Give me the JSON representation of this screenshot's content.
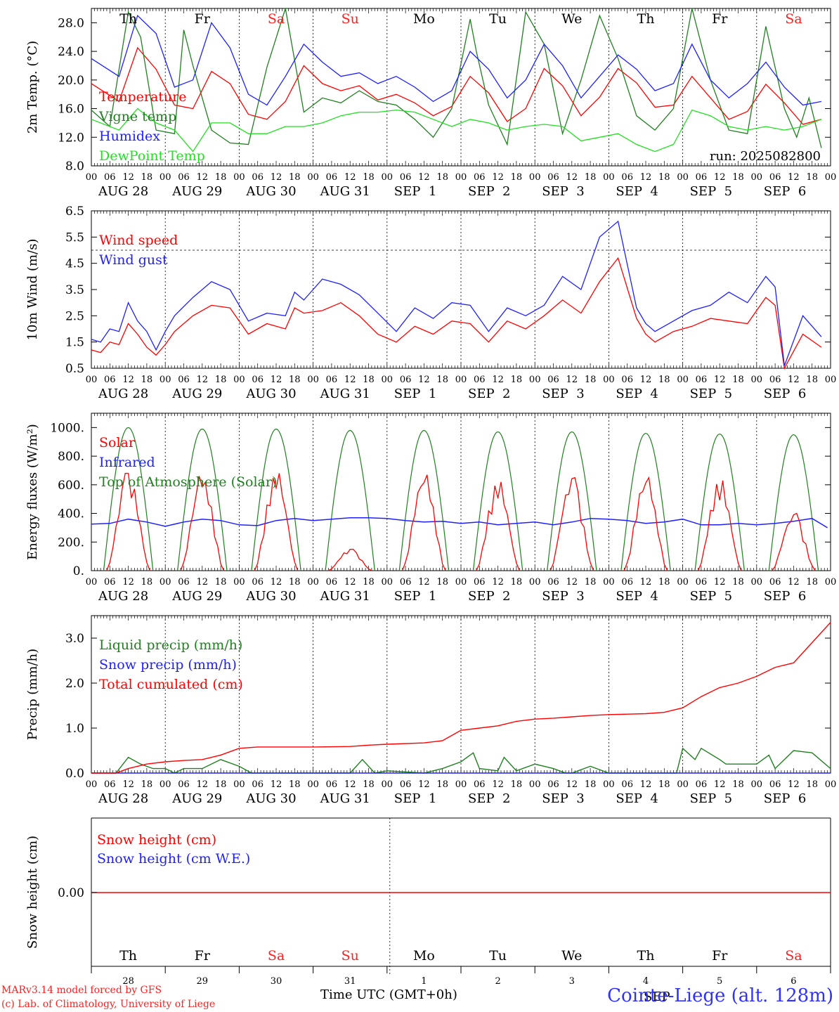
{
  "days": [
    "Th",
    "Fr",
    "Sa",
    "Su",
    "Mo",
    "Tu",
    "We",
    "Th",
    "Fr",
    "Sa"
  ],
  "weekend_days": [
    2,
    3,
    9
  ],
  "date_labels": [
    "AUG 28",
    "AUG 29",
    "AUG 30",
    "AUG 31",
    "SEP  1",
    "SEP  2",
    "SEP  3",
    "SEP  4",
    "SEP  5",
    "SEP  6"
  ],
  "hour_labels": [
    "00",
    "06",
    "12",
    "18"
  ],
  "day_numbers": [
    "28",
    "29",
    "30",
    "31",
    "1",
    "2",
    "3",
    "4",
    "5",
    "6"
  ],
  "colors": {
    "red": "#ff0000",
    "green": "#208020",
    "blue": "#2020ff",
    "lightgreen": "#20e020"
  },
  "footer": {
    "model": "MARv3.14 model forced by GFS",
    "lab": "(c) Lab. of Climatology, University of Liege",
    "time_label": "Time UTC (GMT+0h)",
    "station": "Cointe-Liege (alt. 128m)",
    "overlap_text": "SEP"
  },
  "chart_data": [
    {
      "type": "line",
      "ylabel": "2m Temp. (°C)",
      "yticks": [
        "8.0",
        "12.0",
        "16.0",
        "20.0",
        "24.0",
        "28.0"
      ],
      "ylim": [
        8,
        30
      ],
      "x_unit": "hours since 2025-08-28 00 UTC",
      "run_label": "run: 2025082800",
      "series": [
        {
          "name": "Temperature",
          "color": "#ff0000",
          "x": [
            0,
            9,
            15,
            21,
            27,
            33,
            39,
            45,
            51,
            57,
            63,
            69,
            75,
            81,
            87,
            93,
            99,
            105,
            111,
            117,
            123,
            129,
            135,
            141,
            147,
            153,
            159,
            165,
            171,
            177,
            183,
            189,
            195,
            201,
            207,
            213,
            219,
            225,
            231,
            237
          ],
          "values": [
            19.5,
            17,
            24.5,
            21.5,
            16.5,
            16,
            21.2,
            19.5,
            15.2,
            14.5,
            17,
            22,
            19.5,
            18.5,
            19.2,
            17.2,
            18,
            16.8,
            15,
            16.3,
            20.5,
            18.2,
            14.2,
            16,
            21.6,
            19.2,
            15,
            17.6,
            21.6,
            19.6,
            16.2,
            16.5,
            20.5,
            17.5,
            14.5,
            15.6,
            19.4,
            16.8,
            13.8,
            14.5
          ]
        },
        {
          "name": "Vigne temp",
          "color": "#208020",
          "x": [
            0,
            6,
            12,
            16,
            21,
            27,
            30,
            33,
            39,
            45,
            51,
            57,
            63,
            69,
            75,
            81,
            87,
            93,
            99,
            105,
            111,
            117,
            123,
            125,
            129,
            135,
            141,
            147,
            153,
            159,
            165,
            171,
            177,
            183,
            189,
            195,
            201,
            207,
            213,
            219,
            225,
            229,
            233,
            237
          ],
          "values": [
            15.8,
            13.5,
            29.5,
            26,
            13,
            12.5,
            27,
            22,
            13,
            11.2,
            11,
            21.8,
            30,
            15.5,
            17.5,
            16.8,
            18.5,
            17,
            16.5,
            14.5,
            12,
            16,
            28.5,
            24,
            16.5,
            11,
            29.5,
            25,
            12.5,
            20,
            29,
            23,
            15,
            13,
            16,
            30,
            20,
            13,
            12.5,
            27.5,
            16,
            12,
            17.5,
            10.5
          ]
        },
        {
          "name": "Humidex",
          "color": "#2020ff",
          "x": [
            0,
            9,
            15,
            21,
            27,
            33,
            39,
            45,
            51,
            57,
            63,
            69,
            75,
            81,
            87,
            93,
            99,
            105,
            111,
            117,
            123,
            129,
            135,
            141,
            147,
            153,
            159,
            165,
            171,
            177,
            183,
            189,
            195,
            201,
            207,
            213,
            219,
            225,
            231,
            237
          ],
          "values": [
            23,
            20.5,
            29,
            26.5,
            19,
            20,
            28,
            24.5,
            18,
            16.5,
            20.5,
            25,
            22.5,
            20.5,
            21,
            19.5,
            20.5,
            19,
            17,
            18.5,
            24,
            21.5,
            17.5,
            20,
            25,
            22,
            17.5,
            20.5,
            23.5,
            21.5,
            18.5,
            19.5,
            25,
            20,
            17.5,
            19.5,
            22.5,
            19,
            16.5,
            17
          ]
        },
        {
          "name": "DewPoint Temp",
          "color": "#20e020",
          "x": [
            0,
            9,
            15,
            21,
            27,
            33,
            39,
            45,
            51,
            57,
            63,
            69,
            75,
            81,
            87,
            93,
            99,
            105,
            111,
            117,
            123,
            129,
            135,
            141,
            147,
            153,
            159,
            165,
            171,
            177,
            183,
            189,
            195,
            201,
            207,
            213,
            219,
            225,
            231,
            237
          ],
          "values": [
            14.5,
            13,
            16,
            14,
            13,
            10,
            14,
            14,
            12.5,
            12.5,
            13.5,
            13.5,
            14,
            15,
            15.5,
            15.5,
            15.8,
            15.5,
            14.5,
            13.5,
            14.5,
            14,
            13,
            13.5,
            13.8,
            13.5,
            11.5,
            12,
            12.5,
            11,
            10,
            11,
            15.8,
            15,
            13.5,
            13,
            13.5,
            13,
            13.5,
            14.5
          ]
        }
      ]
    },
    {
      "type": "line",
      "ylabel": "10m Wind (m/s)",
      "yticks": [
        "0.5",
        "1.5",
        "2.5",
        "3.5",
        "4.5",
        "5.5",
        "6.5"
      ],
      "ylim": [
        0.5,
        6.5
      ],
      "ref_line": 5.0,
      "series": [
        {
          "name": "Wind speed",
          "color": "#ff0000",
          "x": [
            0,
            3,
            6,
            9,
            12,
            15,
            18,
            21,
            24,
            27,
            33,
            39,
            45,
            51,
            57,
            63,
            66,
            69,
            75,
            81,
            87,
            93,
            99,
            105,
            111,
            117,
            123,
            129,
            135,
            141,
            147,
            153,
            159,
            165,
            171,
            177,
            180,
            183,
            189,
            195,
            201,
            207,
            213,
            219,
            222,
            225,
            231,
            237
          ],
          "values": [
            1.2,
            1.1,
            1.5,
            1.4,
            2.2,
            1.8,
            1.3,
            1.0,
            1.4,
            1.9,
            2.5,
            2.9,
            2.8,
            1.8,
            2.2,
            2.0,
            2.8,
            2.6,
            2.7,
            3.0,
            2.5,
            1.8,
            1.5,
            2.1,
            1.8,
            2.3,
            2.2,
            1.5,
            2.3,
            2.0,
            2.5,
            3.1,
            2.6,
            3.8,
            4.7,
            2.4,
            1.8,
            1.5,
            1.9,
            2.1,
            2.4,
            2.3,
            2.2,
            3.2,
            2.9,
            0.5,
            1.8,
            1.3
          ]
        },
        {
          "name": "Wind gust",
          "color": "#2020ff",
          "x": [
            0,
            3,
            6,
            9,
            12,
            15,
            18,
            21,
            24,
            27,
            33,
            39,
            45,
            51,
            57,
            63,
            66,
            69,
            75,
            81,
            87,
            93,
            99,
            105,
            111,
            117,
            123,
            129,
            135,
            141,
            147,
            153,
            159,
            165,
            171,
            177,
            180,
            183,
            189,
            195,
            201,
            207,
            213,
            219,
            222,
            225,
            231,
            237
          ],
          "values": [
            1.6,
            1.5,
            2.0,
            1.9,
            3.0,
            2.3,
            1.9,
            1.2,
            1.9,
            2.5,
            3.2,
            3.8,
            3.5,
            2.3,
            2.6,
            2.5,
            3.4,
            3.1,
            3.9,
            3.7,
            3.3,
            2.6,
            1.9,
            2.8,
            2.4,
            3.0,
            2.9,
            1.9,
            2.8,
            2.5,
            2.9,
            4.0,
            3.5,
            5.5,
            6.1,
            2.8,
            2.2,
            1.9,
            2.3,
            2.7,
            2.9,
            3.4,
            3.0,
            4.0,
            3.6,
            0.6,
            2.5,
            1.7
          ]
        }
      ]
    },
    {
      "type": "line",
      "ylabel": "Energy fluxes (W/m²)",
      "yticks": [
        "0.",
        "200.",
        "400.",
        "600.",
        "800.",
        "1000."
      ],
      "ylim": [
        0,
        1100
      ],
      "series": [
        {
          "name": "Solar",
          "color": "#ff0000",
          "daily_peaks": [
            680,
            660,
            680,
            150,
            670,
            620,
            650,
            650,
            630,
            400
          ],
          "daily_noon_hours": [
            11,
            11,
            13,
            13,
            13,
            13,
            13,
            13,
            13,
            13
          ]
        },
        {
          "name": "Infrared",
          "color": "#2020ff",
          "x": [
            0,
            6,
            12,
            18,
            24,
            30,
            36,
            42,
            48,
            54,
            60,
            66,
            72,
            78,
            84,
            90,
            96,
            102,
            108,
            114,
            120,
            126,
            132,
            138,
            144,
            150,
            156,
            162,
            168,
            174,
            180,
            186,
            192,
            198,
            204,
            210,
            216,
            222,
            228,
            234,
            239
          ],
          "values": [
            325,
            330,
            360,
            340,
            310,
            340,
            360,
            350,
            320,
            315,
            350,
            365,
            350,
            360,
            370,
            370,
            365,
            350,
            340,
            345,
            330,
            340,
            320,
            330,
            340,
            320,
            340,
            365,
            360,
            350,
            330,
            340,
            360,
            320,
            320,
            330,
            320,
            330,
            345,
            365,
            300
          ]
        },
        {
          "name": "Top of Atmosphere (Solar)",
          "color": "#208020",
          "daily_peaks": [
            1000,
            990,
            990,
            980,
            980,
            970,
            970,
            960,
            955,
            950
          ]
        }
      ]
    },
    {
      "type": "line",
      "ylabel": "Precip (mm/h)",
      "yticks": [
        "0.0",
        "1.0",
        "2.0",
        "3.0"
      ],
      "ylim": [
        0,
        3.5
      ],
      "series": [
        {
          "name": "Liquid precip (mm/h)",
          "color": "#208020",
          "x": [
            0,
            8,
            12,
            16,
            20,
            24,
            27,
            30,
            36,
            42,
            48,
            52,
            60,
            72,
            84,
            88,
            92,
            96,
            108,
            114,
            120,
            124,
            126,
            132,
            134,
            138,
            144,
            150,
            154,
            156,
            162,
            168,
            174,
            180,
            186,
            190,
            192,
            196,
            198,
            204,
            206,
            210,
            216,
            220,
            222,
            228,
            234,
            240
          ],
          "values": [
            0,
            0,
            0.35,
            0.2,
            0.1,
            0.1,
            0,
            0.1,
            0.1,
            0.3,
            0.15,
            0,
            0,
            0,
            0,
            0.3,
            0,
            0.05,
            0,
            0.1,
            0.25,
            0.45,
            0.1,
            0.05,
            0.35,
            0.05,
            0.2,
            0.1,
            0,
            0,
            0.15,
            0,
            0,
            0,
            0,
            0,
            0.55,
            0.3,
            0.55,
            0.3,
            0.2,
            0.2,
            0.2,
            0.4,
            0.1,
            0.5,
            0.45,
            0.1
          ]
        },
        {
          "name": "Snow precip (mm/h)",
          "color": "#2020ff",
          "x": [
            0,
            240
          ],
          "values": [
            0,
            0
          ]
        },
        {
          "name": "Total cumulated (cm)",
          "color": "#ff0000",
          "x": [
            0,
            8,
            12,
            18,
            24,
            30,
            36,
            42,
            48,
            54,
            60,
            72,
            84,
            90,
            96,
            108,
            114,
            120,
            126,
            132,
            138,
            144,
            150,
            156,
            162,
            168,
            174,
            180,
            186,
            192,
            198,
            204,
            210,
            216,
            222,
            228,
            234,
            240
          ],
          "values": [
            0,
            0,
            0.1,
            0.2,
            0.25,
            0.28,
            0.3,
            0.4,
            0.55,
            0.58,
            0.58,
            0.58,
            0.59,
            0.62,
            0.64,
            0.67,
            0.72,
            0.95,
            1.0,
            1.05,
            1.15,
            1.2,
            1.22,
            1.25,
            1.28,
            1.3,
            1.31,
            1.32,
            1.35,
            1.45,
            1.7,
            1.9,
            2.0,
            2.15,
            2.35,
            2.45,
            2.9,
            3.35
          ]
        }
      ]
    },
    {
      "type": "line",
      "ylabel": "Snow height (cm)",
      "yticks": [
        "0.00"
      ],
      "series": [
        {
          "name": "Snow height (cm)",
          "color": "#ff0000",
          "x": [
            0,
            240
          ],
          "values": [
            0,
            0
          ]
        },
        {
          "name": "Snow height (cm W.E.)",
          "color": "#2020ff",
          "x": [
            0,
            240
          ],
          "values": [
            0,
            0
          ]
        }
      ]
    }
  ]
}
